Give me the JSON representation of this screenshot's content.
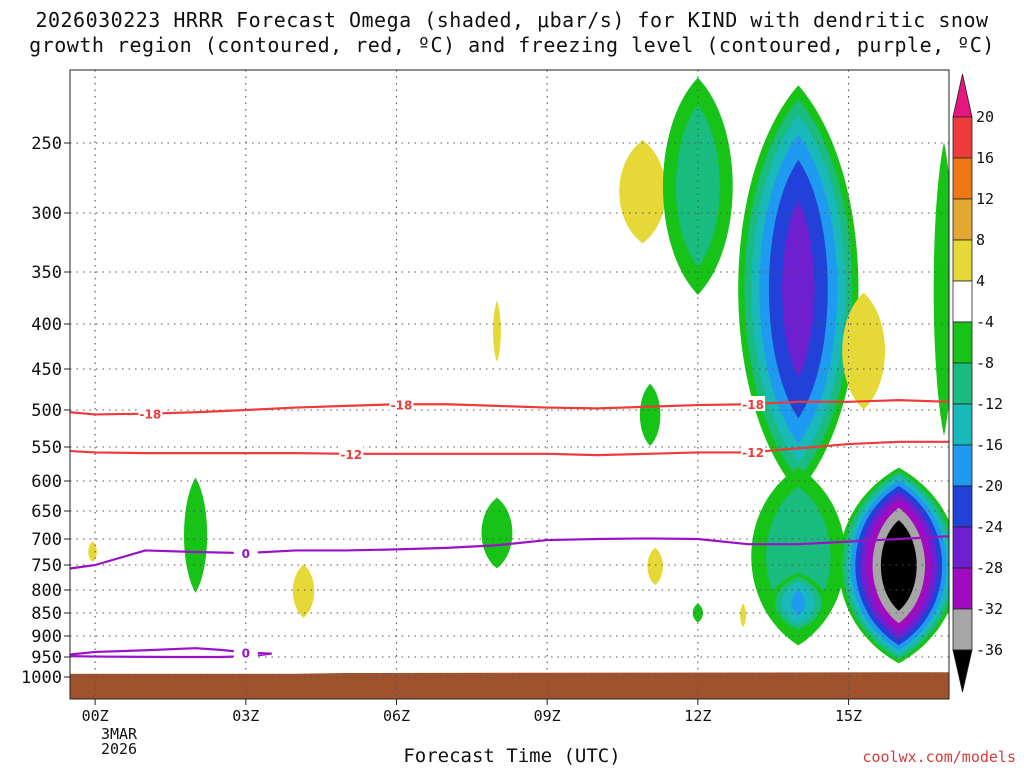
{
  "title": {
    "line1": "2026030223 HRRR Forecast Omega (shaded, μbar/s) for KIND with dendritic snow",
    "line2": "growth region (contoured, red, ºC) and freezing level (contoured, purple, ºC)"
  },
  "x_axis_title": "Forecast Time (UTC)",
  "credit": "coolwx.com/models",
  "chart_data": {
    "type": "time-height cross-section",
    "x_ticks": [
      {
        "hour": 0,
        "label": "00Z"
      },
      {
        "hour": 3,
        "label": "03Z"
      },
      {
        "hour": 6,
        "label": "06Z"
      },
      {
        "hour": 9,
        "label": "09Z"
      },
      {
        "hour": 12,
        "label": "12Z"
      },
      {
        "hour": 15,
        "label": "15Z"
      }
    ],
    "x_date_label": [
      "3MAR",
      "2026"
    ],
    "xlim": [
      -0.5,
      17
    ],
    "y_pressure_labels": [
      "250",
      "300",
      "350",
      "400",
      "450",
      "500",
      "550",
      "600",
      "650",
      "700",
      "750",
      "800",
      "850",
      "900",
      "950",
      "1000"
    ],
    "y_pressure_values": [
      250,
      300,
      350,
      400,
      450,
      500,
      550,
      600,
      650,
      700,
      750,
      800,
      850,
      900,
      950,
      1000
    ],
    "colorbar": {
      "levels": [
        "20",
        "16",
        "12",
        "8",
        "4",
        "-4",
        "-8",
        "-12",
        "-16",
        "-20",
        "-24",
        "-28",
        "-32",
        "-36"
      ],
      "bins": [
        {
          "range": ">20",
          "color": "#e5177e"
        },
        {
          "range": "16 to 20",
          "color": "#ee3c3c"
        },
        {
          "range": "12 to 16",
          "color": "#f07814"
        },
        {
          "range": "8 to 12",
          "color": "#e3a832"
        },
        {
          "range": "4 to 8",
          "color": "#e6d836"
        },
        {
          "range": "-4 to 4",
          "color": "#ffffff"
        },
        {
          "range": "-8 to -4",
          "color": "#17c317"
        },
        {
          "range": "-12 to -8",
          "color": "#19bb7e"
        },
        {
          "range": "-16 to -12",
          "color": "#19b9b9"
        },
        {
          "range": "-20 to -16",
          "color": "#1e9bf0"
        },
        {
          "range": "-24 to -20",
          "color": "#2241d8"
        },
        {
          "range": "-28 to -24",
          "color": "#6e20d0"
        },
        {
          "range": "-32 to -28",
          "color": "#a00ac0"
        },
        {
          "range": "-36 to -32",
          "color": "#a6a6a6"
        },
        {
          "range": "<-36",
          "color": "#000000"
        }
      ]
    },
    "dgz_contours": [
      {
        "label": "-18",
        "color": "#ee3a3a",
        "points": [
          [
            -0.5,
            503
          ],
          [
            0,
            506
          ],
          [
            1,
            505
          ],
          [
            2,
            503
          ],
          [
            3,
            500
          ],
          [
            4,
            497
          ],
          [
            5,
            495
          ],
          [
            6,
            493
          ],
          [
            7,
            493
          ],
          [
            8,
            495
          ],
          [
            9,
            497
          ],
          [
            10,
            498
          ],
          [
            11,
            496
          ],
          [
            12,
            494
          ],
          [
            13,
            493
          ],
          [
            14,
            490
          ],
          [
            15,
            490
          ],
          [
            16,
            488
          ],
          [
            17,
            490
          ]
        ],
        "label_hours": [
          1.1,
          6.1,
          13.1
        ]
      },
      {
        "label": "-12",
        "color": "#ee3a3a",
        "points": [
          [
            -0.5,
            556
          ],
          [
            0,
            558
          ],
          [
            1,
            559
          ],
          [
            2,
            559
          ],
          [
            3,
            559
          ],
          [
            4,
            559
          ],
          [
            5,
            560
          ],
          [
            6,
            560
          ],
          [
            7,
            560
          ],
          [
            8,
            560
          ],
          [
            9,
            560
          ],
          [
            10,
            562
          ],
          [
            11,
            560
          ],
          [
            12,
            558
          ],
          [
            13,
            558
          ],
          [
            14,
            552
          ],
          [
            15,
            546
          ],
          [
            16,
            543
          ],
          [
            17,
            543
          ]
        ],
        "label_hours": [
          5.1,
          13.1
        ]
      }
    ],
    "freezing_level_contours": [
      {
        "label": "0",
        "color": "#9a12c8",
        "points": [
          [
            -0.5,
            757
          ],
          [
            0,
            750
          ],
          [
            1,
            722
          ],
          [
            2,
            725
          ],
          [
            3,
            727
          ],
          [
            4,
            722
          ],
          [
            5,
            722
          ],
          [
            6,
            720
          ],
          [
            7,
            717
          ],
          [
            8,
            712
          ],
          [
            9,
            702
          ],
          [
            10,
            700
          ],
          [
            11,
            699
          ],
          [
            12,
            700
          ],
          [
            13,
            710
          ],
          [
            14,
            710
          ],
          [
            15,
            705
          ],
          [
            16,
            700
          ],
          [
            17,
            695
          ]
        ],
        "label_hours": [
          3
        ]
      },
      {
        "label": "0",
        "color": "#9a12c8",
        "points": [
          [
            -0.5,
            944
          ],
          [
            0,
            938
          ],
          [
            1,
            934
          ],
          [
            2,
            929
          ],
          [
            2.5,
            933
          ],
          [
            3,
            939
          ],
          [
            3.5,
            942
          ],
          [
            3.1,
            948
          ],
          [
            2.5,
            950
          ],
          [
            1.5,
            950
          ],
          [
            0,
            949
          ],
          [
            -0.5,
            948
          ]
        ],
        "label_hours": [
          3
        ]
      }
    ],
    "omega_features": [
      {
        "hour": -0.05,
        "top_hPa": 690,
        "bottom_hPa": 760,
        "half_width_hours": 0.22,
        "peak": 5
      },
      {
        "hour": 2.0,
        "top_hPa": 555,
        "bottom_hPa": 865,
        "half_width_hours": 0.45,
        "peak": -6
      },
      {
        "hour": 4.15,
        "top_hPa": 710,
        "bottom_hPa": 905,
        "half_width_hours": 0.55,
        "peak": 5
      },
      {
        "hour": 8.0,
        "top_hPa": 355,
        "bottom_hPa": 470,
        "half_width_hours": 0.2,
        "peak": 5
      },
      {
        "hour": 8.0,
        "top_hPa": 600,
        "bottom_hPa": 790,
        "half_width_hours": 0.6,
        "peak": -6
      },
      {
        "hour": 10.9,
        "top_hPa": 220,
        "bottom_hPa": 360,
        "half_width_hours": 1.2,
        "peak": 5
      },
      {
        "hour": 11.05,
        "top_hPa": 450,
        "bottom_hPa": 570,
        "half_width_hours": 0.4,
        "peak": -6
      },
      {
        "hour": 11.15,
        "top_hPa": 690,
        "bottom_hPa": 820,
        "half_width_hours": 0.4,
        "peak": 5
      },
      {
        "hour": 12.0,
        "top_hPa": 190,
        "bottom_hPa": 390,
        "half_width_hours": 0.95,
        "peak": -11
      },
      {
        "hour": 12.0,
        "top_hPa": 820,
        "bottom_hPa": 880,
        "half_width_hours": 0.2,
        "peak": -6
      },
      {
        "hour": 12.9,
        "top_hPa": 810,
        "bottom_hPa": 900,
        "half_width_hours": 0.15,
        "peak": 5
      },
      {
        "hour": 14.0,
        "top_hPa": 200,
        "bottom_hPa": 640,
        "half_width_hours": 1.4,
        "peak": -26
      },
      {
        "hour": 14.0,
        "top_hPa": 560,
        "bottom_hPa": 955,
        "half_width_hours": 1.25,
        "peak": -12
      },
      {
        "hour": 14.0,
        "top_hPa": 760,
        "bottom_hPa": 900,
        "half_width_hours": 0.7,
        "peak": -17
      },
      {
        "hour": 15.3,
        "top_hPa": 330,
        "bottom_hPa": 560,
        "half_width_hours": 1.1,
        "peak": 5
      },
      {
        "hour": 16.0,
        "top_hPa": 575,
        "bottom_hPa": 975,
        "half_width_hours": 1.35,
        "peak": -40
      },
      {
        "hour": 16.9,
        "top_hPa": 200,
        "bottom_hPa": 640,
        "half_width_hours": 0.4,
        "peak": -6
      }
    ],
    "terrain": {
      "color": "#a0522d",
      "surface_hPa": [
        [
          -0.5,
          992
        ],
        [
          4,
          992
        ],
        [
          5,
          990
        ],
        [
          17,
          988
        ]
      ]
    }
  }
}
